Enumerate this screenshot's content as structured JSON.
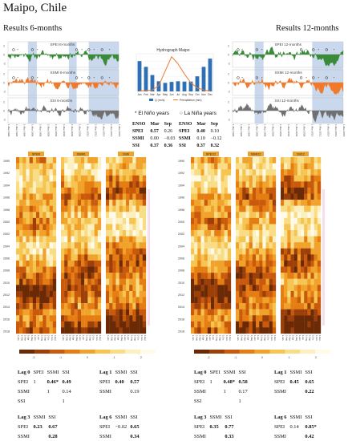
{
  "title": "Maipo, Chile",
  "left_heading": "Results 6-months",
  "right_heading": "Results 12-months",
  "left_panels": [
    {
      "label": "SPEI 6-months",
      "color": "#3a8a3a"
    },
    {
      "label": "SSMI 6-months",
      "color": "#f07a2a"
    },
    {
      "label": "SSI 6-months",
      "color": "#707070"
    }
  ],
  "right_panels": [
    {
      "label": "SPEI 12-months",
      "color": "#3a8a3a"
    },
    {
      "label": "SSMI 12-months",
      "color": "#f07a2a"
    },
    {
      "label": "SSI 12-months",
      "color": "#707070"
    }
  ],
  "ts_years": [
    "1-Mar 1990",
    "1-Mar 1992",
    "1-Mar 1994",
    "1-Mar 1996",
    "1-Mar 1998",
    "1-Mar 2000",
    "1-Mar 2002",
    "1-Mar 2004",
    "1-Mar 2006",
    "1-Mar 2008",
    "1-Mar 2010",
    "1-Mar 2012",
    "1-Mar 2014",
    "1-Mar 2016",
    "1-Mar 2018"
  ],
  "hydrograph": {
    "title": "Hydrograph Maipo",
    "months": [
      "Jan",
      "Feb",
      "Mar",
      "Apr",
      "May",
      "Jun",
      "Jul",
      "Aug",
      "Sep",
      "Oct",
      "Nov",
      "Dec"
    ],
    "legend_bar": "Q (m³/s)",
    "legend_line": "Precipitation (mm)",
    "q": [
      185,
      150,
      100,
      62,
      52,
      58,
      62,
      60,
      60,
      92,
      150,
      200
    ],
    "precip": [
      2,
      3,
      5,
      20,
      70,
      120,
      95,
      60,
      30,
      12,
      5,
      2
    ],
    "ylim": [
      0,
      230
    ]
  },
  "enso": {
    "el_nino_label": "* El Niño years",
    "la_nina_label": "○ La Niña years",
    "left": {
      "header": [
        "ENSO",
        "Mar",
        "Sep"
      ],
      "rows": [
        [
          "SPEI",
          "0.57",
          "0.26"
        ],
        [
          "SSMI",
          "0.00",
          "−0.03"
        ],
        [
          "SSI",
          "0.37",
          "0.36"
        ]
      ]
    },
    "right": {
      "header": [
        "ENSO",
        "Mar",
        "Sep"
      ],
      "rows": [
        [
          "SPEI",
          "0.40",
          "0.10"
        ],
        [
          "SSMI",
          "0.10",
          "−0.12"
        ],
        [
          "SSI",
          "0.37",
          "0.32"
        ]
      ]
    }
  },
  "heatmaps": {
    "left_labels": [
      "SPEI6",
      "SSMI6",
      "SSI6"
    ],
    "right_labels": [
      "SPEI12",
      "SSMI12",
      "SSI12"
    ],
    "years": [
      "1990",
      "",
      "1992",
      "",
      "1994",
      "",
      "1996",
      "",
      "1998",
      "",
      "2000",
      "",
      "2002",
      "",
      "2004",
      "",
      "2006",
      "",
      "2008",
      "",
      "2010",
      "",
      "2012",
      "",
      "2014",
      "",
      "2016",
      "",
      "2018"
    ],
    "months": [
      "1-Jan",
      "1-Feb",
      "1-Mar",
      "1-Apr",
      "1-May",
      "1-Jun",
      "1-Jul",
      "1-Aug",
      "1-Sep",
      "1-Oct",
      "1-Nov",
      "1-Dec"
    ],
    "colorbar_ticks": [
      "-2",
      "-1",
      "0",
      "1",
      "2"
    ],
    "colorbar_colors": [
      "#6b2a06",
      "#9c3f08",
      "#c95a0b",
      "#e57d12",
      "#f0a22a",
      "#f6c451",
      "#f9dd86",
      "#fcefc0",
      "#fffbe8"
    ]
  },
  "lag_tables": {
    "left": [
      {
        "rows": [
          [
            "Lag 0",
            "SPEI",
            "SSMI",
            "SSI"
          ],
          [
            "SPEI",
            "1",
            "0.46*",
            "0.49"
          ],
          [
            "SSMI",
            "",
            "1",
            "0.14"
          ],
          [
            "SSI",
            "",
            "",
            "1"
          ]
        ],
        "bold": [
          [
            1,
            2
          ],
          [
            1,
            3
          ]
        ]
      },
      {
        "rows": [
          [
            "Lag 1",
            "SSMI",
            "SSI"
          ],
          [
            "SPEI",
            "0.40",
            "0.57"
          ],
          [
            "SSMI",
            "",
            "0.19"
          ]
        ],
        "bold": [
          [
            1,
            1
          ],
          [
            1,
            2
          ]
        ]
      },
      {
        "rows": [
          [
            "Lag 3",
            "SSMI",
            "SSI"
          ],
          [
            "SPEI",
            "0.23",
            "0.67"
          ],
          [
            "SSMI",
            "",
            "0.28"
          ]
        ],
        "bold": [
          [
            1,
            1
          ],
          [
            1,
            2
          ],
          [
            2,
            2
          ]
        ]
      },
      {
        "rows": [
          [
            "Lag 6",
            "SSMI",
            "SSI"
          ],
          [
            "SPEI",
            "−0.02",
            "0.65"
          ],
          [
            "SSMI",
            "",
            "0.34"
          ]
        ],
        "bold": [
          [
            1,
            2
          ],
          [
            2,
            2
          ]
        ]
      }
    ],
    "right": [
      {
        "rows": [
          [
            "Lag 0",
            "SPEI",
            "SSMI",
            "SSI"
          ],
          [
            "SPEI",
            "1",
            "0.48*",
            "0.58"
          ],
          [
            "SSMI",
            "",
            "1",
            "0.17"
          ],
          [
            "SSI",
            "",
            "",
            "1"
          ]
        ],
        "bold": [
          [
            1,
            2
          ],
          [
            1,
            3
          ]
        ]
      },
      {
        "rows": [
          [
            "Lag 1",
            "SSMI",
            "SSI"
          ],
          [
            "SPEI",
            "0.45",
            "0.65"
          ],
          [
            "SSMI",
            "",
            "0.22"
          ]
        ],
        "bold": [
          [
            1,
            1
          ],
          [
            1,
            2
          ],
          [
            2,
            2
          ]
        ]
      },
      {
        "rows": [
          [
            "Lag 3",
            "SSMI",
            "SSI"
          ],
          [
            "SPEI",
            "0.35",
            "0.77"
          ],
          [
            "SSMI",
            "",
            "0.33"
          ]
        ],
        "bold": [
          [
            1,
            1
          ],
          [
            1,
            2
          ],
          [
            2,
            2
          ]
        ]
      },
      {
        "rows": [
          [
            "Lag 6",
            "SSMI",
            "SSI"
          ],
          [
            "SPEI",
            "0.14",
            "0.85*"
          ],
          [
            "SSMI",
            "",
            "0.42"
          ]
        ],
        "bold": [
          [
            1,
            2
          ],
          [
            2,
            2
          ]
        ]
      }
    ]
  },
  "chart_data": [
    {
      "type": "bar",
      "title": "Hydrograph Maipo",
      "categories": [
        "Jan",
        "Feb",
        "Mar",
        "Apr",
        "May",
        "Jun",
        "Jul",
        "Aug",
        "Sep",
        "Oct",
        "Nov",
        "Dec"
      ],
      "series": [
        {
          "name": "Q (m³/s)",
          "type": "bar",
          "values": [
            185,
            150,
            100,
            62,
            52,
            58,
            62,
            60,
            60,
            92,
            150,
            200
          ]
        },
        {
          "name": "Precipitation (mm)",
          "type": "line",
          "values": [
            2,
            3,
            5,
            20,
            70,
            120,
            95,
            60,
            30,
            12,
            5,
            2
          ]
        }
      ]
    },
    {
      "type": "area",
      "title": "Results 6-months",
      "series": [
        {
          "name": "SPEI 6-months"
        },
        {
          "name": "SSMI 6-months"
        },
        {
          "name": "SSI 6-months"
        }
      ],
      "x_range": [
        "1990",
        "2019"
      ],
      "ylim": [
        -3,
        3
      ]
    },
    {
      "type": "area",
      "title": "Results 12-months",
      "series": [
        {
          "name": "SPEI 12-months"
        },
        {
          "name": "SSMI 12-months"
        },
        {
          "name": "SSI 12-months"
        }
      ],
      "x_range": [
        "1990",
        "2019"
      ],
      "ylim": [
        -3,
        3
      ]
    },
    {
      "type": "heatmap",
      "series": [
        {
          "name": "SPEI6"
        },
        {
          "name": "SSMI6"
        },
        {
          "name": "SSI6"
        },
        {
          "name": "SPEI12"
        },
        {
          "name": "SSMI12"
        },
        {
          "name": "SSI12"
        }
      ],
      "x": [
        "1-Jan",
        "1-Feb",
        "1-Mar",
        "1-Apr",
        "1-May",
        "1-Jun",
        "1-Jul",
        "1-Aug",
        "1-Sep",
        "1-Oct",
        "1-Nov",
        "1-Dec"
      ],
      "y_range": [
        "1990",
        "2018"
      ],
      "colorbar": [
        -2,
        2
      ]
    }
  ]
}
